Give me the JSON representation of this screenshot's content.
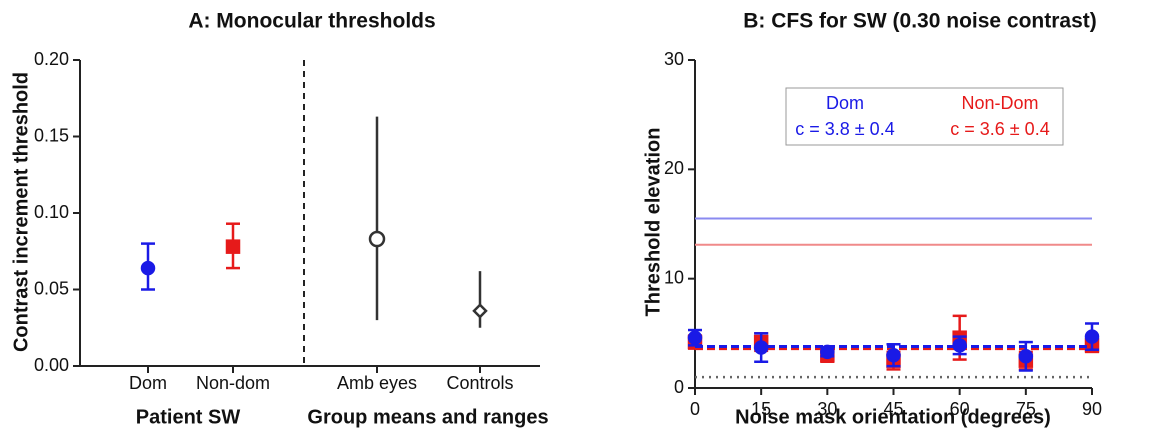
{
  "chart_data": [
    {
      "type": "point-range",
      "title": "A: Monocular thresholds",
      "y_label": "Contrast increment threshold",
      "categories": [
        "Dom",
        "Non-dom",
        "Amb eyes",
        "Controls"
      ],
      "group_labels": [
        "Patient SW",
        "Group means and ranges"
      ],
      "values": [
        0.064,
        0.078,
        0.083,
        0.036
      ],
      "lower": [
        0.05,
        0.064,
        0.03,
        0.025
      ],
      "upper": [
        0.08,
        0.093,
        0.163,
        0.062
      ],
      "colors": [
        "#1a1ae6",
        "#e61a1a",
        "#333333",
        "#333333"
      ],
      "markers": [
        "circle",
        "square",
        "open-circle",
        "open-diamond"
      ],
      "ylim": [
        0,
        0.2
      ],
      "yticks": [
        {
          "value": 0,
          "label": "0.00"
        },
        0.05,
        {
          "value": 0.1,
          "label": "0.10"
        },
        0.15,
        {
          "value": 0.2,
          "label": "0.20"
        }
      ]
    },
    {
      "type": "errorbar-line",
      "title": "B: CFS for SW  (0.30 noise contrast)",
      "y_label": "Threshold elevation",
      "x_label": "Noise mask orientation (degrees)",
      "x": [
        0,
        15,
        30,
        45,
        60,
        75,
        90
      ],
      "series": [
        {
          "name": "Non-Dom",
          "label": "c = 3.6 ± 0.4",
          "color": "#e61a1a",
          "line_color": "#f08a8a",
          "marker": "square",
          "values": [
            4.2,
            4.2,
            3.0,
            2.5,
            4.6,
            2.5,
            3.9
          ],
          "errors": [
            0.6,
            0.8,
            0.6,
            0.8,
            2.0,
            0.8,
            0.6
          ],
          "fit": 3.6,
          "level": 13.1
        },
        {
          "name": "Dom",
          "label": "c = 3.8 ± 0.4",
          "color": "#1a1ae6",
          "line_color": "#8a8af0",
          "marker": "circle",
          "values": [
            4.6,
            3.7,
            3.3,
            3.0,
            3.9,
            2.9,
            4.7
          ],
          "errors": [
            0.7,
            1.3,
            0.4,
            1.0,
            0.8,
            1.3,
            1.2
          ],
          "fit": 3.8,
          "level": 15.5
        }
      ],
      "baseline": 1,
      "xlim": [
        0,
        90
      ],
      "xticks": [
        0,
        15,
        30,
        45,
        60,
        75,
        90
      ],
      "ylim": [
        0,
        30
      ],
      "yticks": [
        0,
        10,
        20,
        30
      ]
    }
  ]
}
